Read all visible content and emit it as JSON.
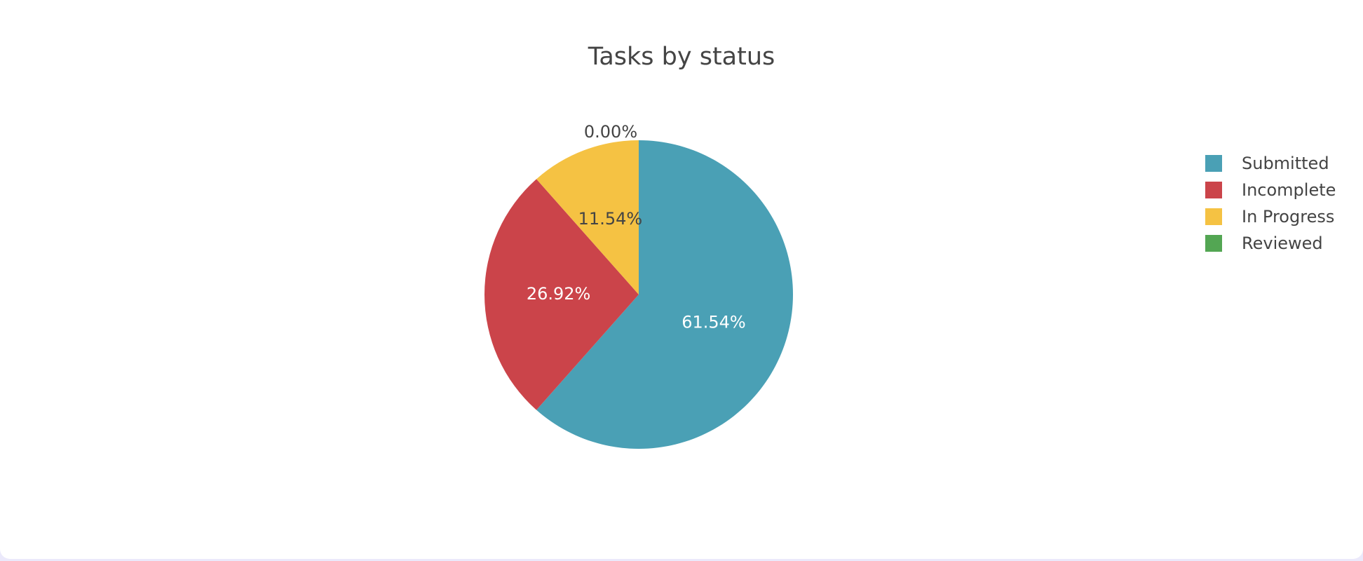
{
  "chart_data": {
    "type": "pie",
    "title": "Tasks by status",
    "categories": [
      "Submitted",
      "Incomplete",
      "In Progress",
      "Reviewed"
    ],
    "values": [
      61.54,
      26.92,
      11.54,
      0.0
    ],
    "labels": [
      "61.54%",
      "26.92%",
      "11.54%",
      "0.00%"
    ],
    "colors": [
      "#4aa0b5",
      "#cb444a",
      "#f5c243",
      "#53a653"
    ],
    "label_colors": [
      "#ffffff",
      "#ffffff",
      "#444444",
      "#444444"
    ],
    "direction": "clockwise",
    "start": "top",
    "legend_position": "right"
  }
}
